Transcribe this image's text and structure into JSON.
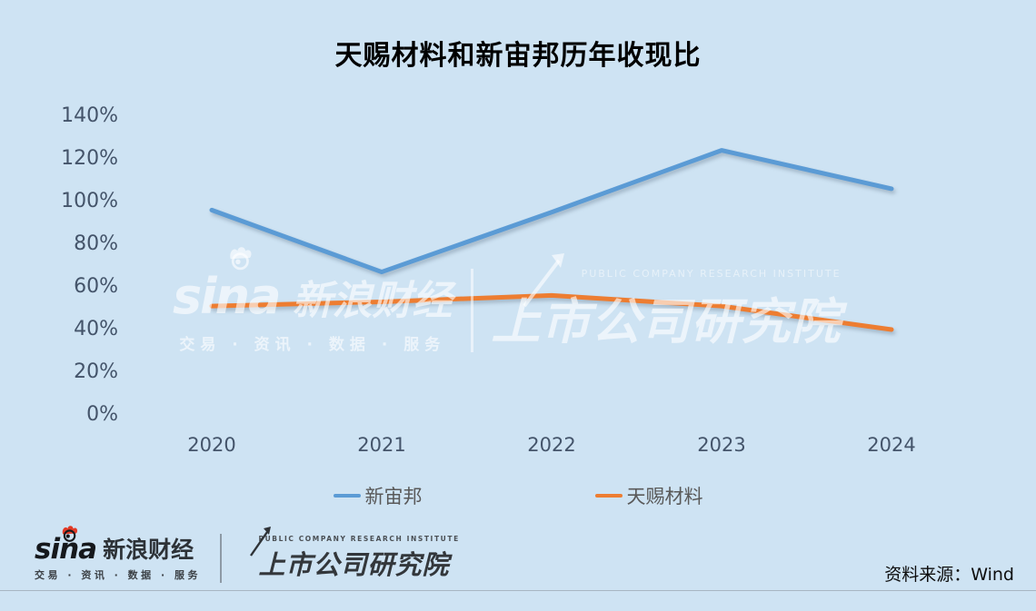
{
  "chart_data": {
    "type": "line",
    "title": "天赐材料和新宙邦历年收现比",
    "categories": [
      "2020",
      "2021",
      "2022",
      "2023",
      "2024"
    ],
    "series": [
      {
        "name": "新宙邦",
        "color": "#5b9bd5",
        "values": [
          96,
          67,
          95,
          124,
          106
        ]
      },
      {
        "name": "天赐材料",
        "color": "#ed7d31",
        "values": [
          51,
          53,
          56,
          51,
          40
        ]
      }
    ],
    "xlabel": "",
    "ylabel": "",
    "ylim": [
      0,
      140
    ],
    "yticks": [
      0,
      20,
      40,
      60,
      80,
      100,
      120,
      140
    ],
    "ytick_suffix": "%",
    "grid": false,
    "legend_position": "bottom"
  },
  "watermark": {
    "sina_word": "sina",
    "brand": "新浪财经",
    "tagline": "交易 · 资讯 · 数据 · 服务",
    "institute": "上市公司研究院",
    "institute_en": "PUBLIC COMPANY RESEARCH INSTITUTE"
  },
  "footer": {
    "sina_word": "sina",
    "brand": "新浪财经",
    "tagline": "交易 · 资讯 · 数据 · 服务",
    "institute": "上市公司研究院",
    "institute_en": "PUBLIC COMPANY RESEARCH INSTITUTE",
    "source_label": "资料来源：Wind"
  },
  "colors": {
    "background": "#cee3f3",
    "line_blue": "#5b9bd5",
    "line_orange": "#ed7d31",
    "axis_text": "#44546a",
    "legend_text": "#595959",
    "sina_red": "#e23a26"
  }
}
